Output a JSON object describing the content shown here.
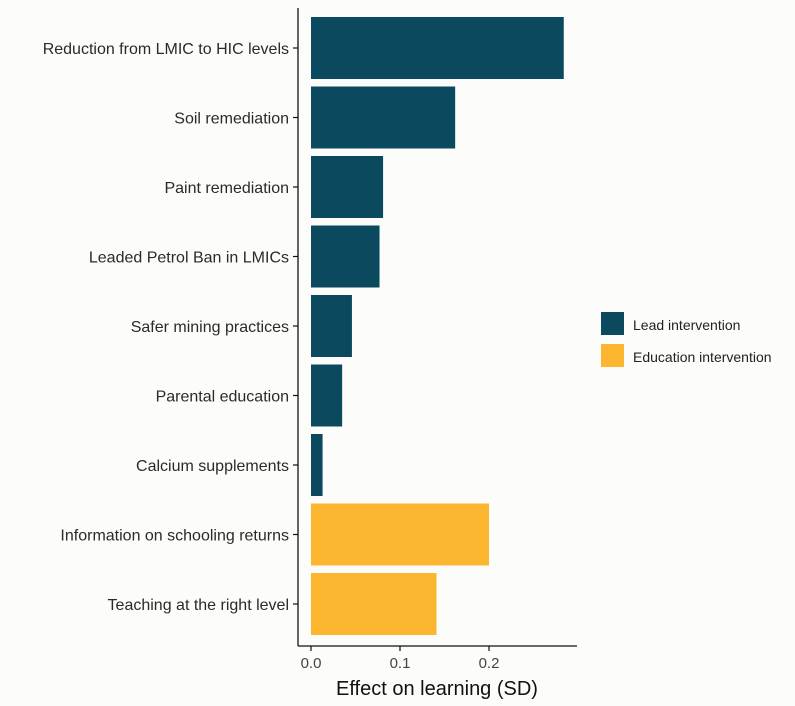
{
  "chart_data": {
    "type": "bar",
    "orientation": "horizontal",
    "xlabel": "Effect on learning (SD)",
    "ylabel": "",
    "xlim": [
      0,
      0.3
    ],
    "xticks": [
      "0.0",
      "0.1",
      "0.2"
    ],
    "xtick_values": [
      0,
      0.1,
      0.2
    ],
    "grid": false,
    "legend_position": "right",
    "categories": [
      "Reduction from LMIC to HIC levels",
      "Soil remediation",
      "Paint remediation",
      "Leaded Petrol Ban in LMICs",
      "Safer mining practices",
      "Parental education",
      "Calcium supplements",
      "Information on schooling returns",
      "Teaching at the right level"
    ],
    "values": [
      0.284,
      0.162,
      0.081,
      0.077,
      0.046,
      0.035,
      0.013,
      0.2,
      0.141
    ],
    "groups": [
      "Lead intervention",
      "Lead intervention",
      "Lead intervention",
      "Lead intervention",
      "Lead intervention",
      "Lead intervention",
      "Lead intervention",
      "Education intervention",
      "Education intervention"
    ],
    "legend": [
      {
        "name": "Lead intervention",
        "color": "#0b4a5e"
      },
      {
        "name": "Education intervention",
        "color": "#fdb62f"
      }
    ]
  }
}
